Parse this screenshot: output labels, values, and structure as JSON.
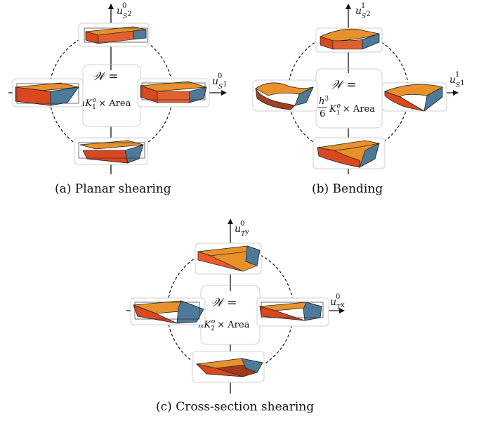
{
  "panels": [
    {
      "id": "a",
      "caption": "(a) Planar shearing",
      "y_axis": {
        "symbol": "u",
        "sup": "0",
        "sub": "S",
        "subsup": "2"
      },
      "x_axis": {
        "symbol": "u",
        "sup": "0",
        "sub": "S",
        "subsup": "1"
      },
      "energy": {
        "lhs": "𝒲 =",
        "coef_prefix": "hK",
        "coef_sub": "1",
        "coef_sup": "o",
        "tail": "× Area"
      }
    },
    {
      "id": "b",
      "caption": "(b) Bending",
      "y_axis": {
        "symbol": "u",
        "sup": "1",
        "sub": "S",
        "subsup": "2"
      },
      "x_axis": {
        "symbol": "u",
        "sup": "1",
        "sub": "S",
        "subsup": "1"
      },
      "energy": {
        "lhs": "𝒲 =",
        "frac_num": "h",
        "frac_num_sup": "3",
        "frac_den": "6",
        "coef_prefix": "K",
        "coef_sub": "1",
        "coef_sup": "o",
        "tail": "× Area"
      }
    },
    {
      "id": "c",
      "caption": "(c) Cross-section shearing",
      "y_axis": {
        "symbol": "u",
        "sup": "0",
        "sub": "T",
        "subsup": "y"
      },
      "x_axis": {
        "symbol": "u",
        "sup": "0",
        "sub": "T",
        "subsup": "x"
      },
      "energy": {
        "lhs": "𝒲 =",
        "coef_prefix": "hK",
        "coef_sub": "2",
        "coef_sup": "o",
        "tail": "× Area"
      }
    }
  ],
  "colors": {
    "orange": "#e8902a",
    "red": "#d9481f",
    "blue": "#4e7a99",
    "outline": "#222222",
    "box": "#cfcfcf"
  }
}
